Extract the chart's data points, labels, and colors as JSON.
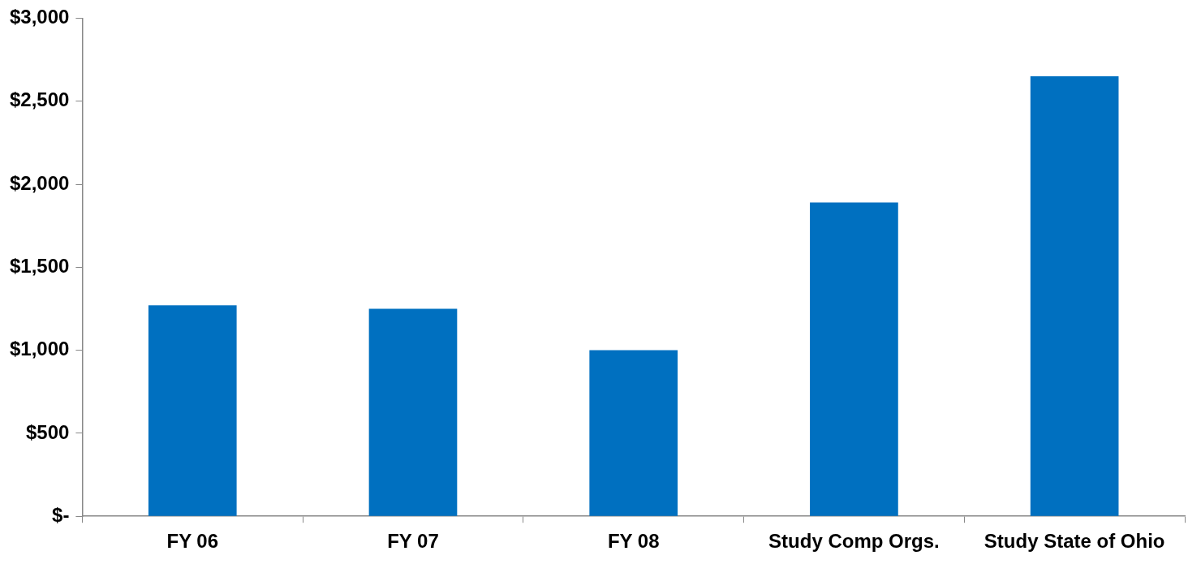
{
  "chart_data": {
    "type": "bar",
    "categories": [
      "FY 06",
      "FY 07",
      "FY 08",
      "Study Comp Orgs.",
      "Study State of Ohio"
    ],
    "values": [
      1270,
      1250,
      1000,
      1890,
      2650
    ],
    "color": "#0070c0",
    "ylim": [
      0,
      3000
    ],
    "yticks": [
      {
        "value": 0,
        "label": "$-"
      },
      {
        "value": 500,
        "label": "$500"
      },
      {
        "value": 1000,
        "label": "$1,000"
      },
      {
        "value": 1500,
        "label": "$1,500"
      },
      {
        "value": 2000,
        "label": "$2,000"
      },
      {
        "value": 2500,
        "label": "$2,500"
      },
      {
        "value": 3000,
        "label": "$3,000"
      }
    ],
    "grid": false,
    "legend": false
  }
}
